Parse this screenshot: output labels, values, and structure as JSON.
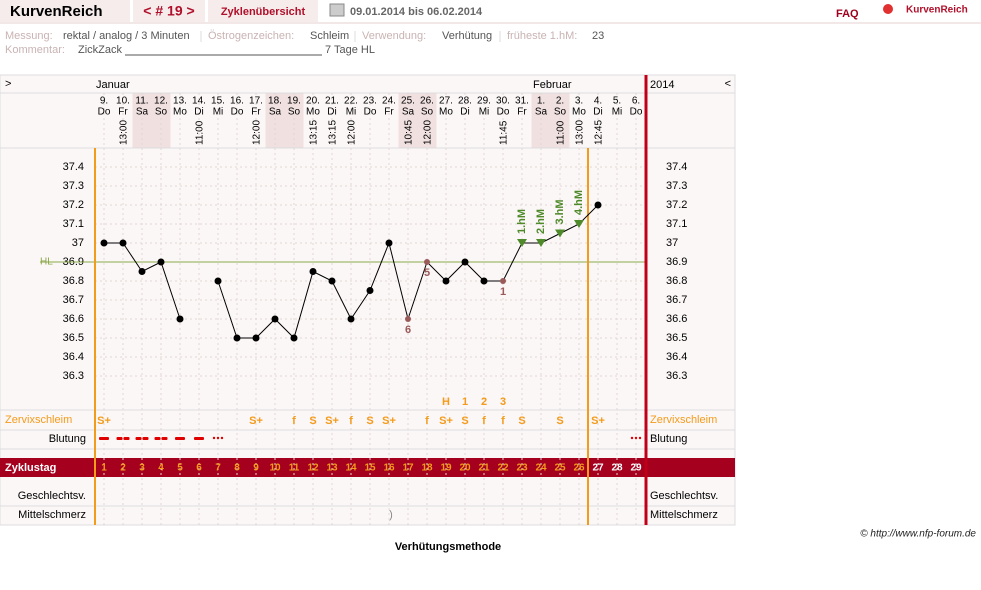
{
  "header": {
    "logo": "KurvenReich",
    "cycle_nav": "< # 19 >",
    "overview": "Zyklenübersicht",
    "date_range": "09.01.2014 bis 06.02.2014",
    "faq": "FAQ",
    "brand": "KurvenReich"
  },
  "info": {
    "items": [
      {
        "label": "Messung:",
        "value": "rektal / analog / 3 Minuten"
      },
      {
        "label": "Östrogenzeichen:",
        "value": "Schleim"
      },
      {
        "label": "Verwendung:",
        "value": "Verhütung"
      },
      {
        "label": "früheste 1.hM:",
        "value": "23"
      }
    ],
    "comment_label": "Kommentar:",
    "comment_start": "ZickZack",
    "comment_end": "7 Tage HL"
  },
  "chart_data": {
    "type": "line",
    "year": "2014",
    "nav_left": ">",
    "nav_right": "<",
    "month_labels": [
      "Januar",
      null,
      null,
      null,
      null,
      null,
      null,
      null,
      null,
      null,
      null,
      null,
      null,
      null,
      null,
      null,
      null,
      null,
      null,
      null,
      null,
      null,
      null,
      "Februar",
      null,
      null,
      null,
      null,
      null
    ],
    "categories": [
      "9.",
      "10.",
      "11.",
      "12.",
      "13.",
      "14.",
      "15.",
      "16.",
      "17.",
      "18.",
      "19.",
      "20.",
      "21.",
      "22.",
      "23.",
      "24.",
      "25.",
      "26.",
      "27.",
      "28.",
      "29.",
      "30.",
      "31.",
      "1.",
      "2.",
      "3.",
      "4.",
      "5.",
      "6."
    ],
    "weekdays": [
      "Do",
      "Fr",
      "Sa",
      "So",
      "Mo",
      "Di",
      "Mi",
      "Do",
      "Fr",
      "Sa",
      "So",
      "Mo",
      "Di",
      "Mi",
      "Do",
      "Fr",
      "Sa",
      "So",
      "Mo",
      "Di",
      "Mi",
      "Do",
      "Fr",
      "Sa",
      "So",
      "Mo",
      "Di",
      "Mi",
      "Do"
    ],
    "times": [
      null,
      "13:00",
      null,
      null,
      null,
      "11:00",
      null,
      null,
      "12:00",
      null,
      null,
      "13:15",
      "13:15",
      "12:00",
      null,
      null,
      "10:45",
      "12:00",
      null,
      null,
      null,
      "11:45",
      null,
      null,
      "11:00",
      "13:00",
      "12:45",
      null,
      null
    ],
    "series": [
      {
        "color": "#000000",
        "values": [
          37.0,
          37.0,
          36.85,
          36.9,
          36.6,
          null,
          36.8,
          36.5,
          36.5,
          36.6,
          36.5,
          36.85,
          36.8,
          36.6,
          36.75,
          37.0,
          36.6,
          36.9,
          36.8,
          36.9,
          36.8,
          36.8,
          37.0,
          37.0,
          37.05,
          37.1,
          37.2,
          null,
          null
        ]
      }
    ],
    "point_labels": [
      null,
      null,
      null,
      null,
      null,
      null,
      null,
      null,
      null,
      null,
      null,
      null,
      null,
      null,
      null,
      null,
      "6",
      "5",
      null,
      null,
      null,
      "1",
      null,
      null,
      null,
      null,
      null,
      null,
      null
    ],
    "excluded_color": "#9a5a5a",
    "hm_labels": [
      null,
      null,
      null,
      null,
      null,
      null,
      null,
      null,
      null,
      null,
      null,
      null,
      null,
      null,
      null,
      null,
      null,
      null,
      null,
      null,
      null,
      null,
      "1.hM",
      "2.hM",
      "3.hM",
      "4.hM",
      null,
      null,
      null
    ],
    "hm_color": "#4f8a2a",
    "ylim": [
      36.2,
      37.5
    ],
    "yticks": [
      36.3,
      36.4,
      36.5,
      36.6,
      36.7,
      36.8,
      36.9,
      37,
      37.1,
      37.2,
      37.3,
      37.4
    ],
    "grid": true,
    "coverline": {
      "label": "HL",
      "value": 36.9,
      "color": "#8aa84a"
    },
    "rows": {
      "zervix": {
        "label": "Zervixschleim",
        "peak": [
          null,
          null,
          null,
          null,
          null,
          null,
          null,
          null,
          null,
          null,
          null,
          null,
          null,
          null,
          null,
          null,
          null,
          null,
          "H",
          "1",
          "2",
          "3",
          null,
          null,
          null,
          null,
          null,
          null,
          null
        ],
        "values": [
          "S+",
          null,
          null,
          null,
          null,
          null,
          null,
          null,
          "S+",
          null,
          "f",
          "S",
          "S+",
          "f",
          "S",
          "S+",
          null,
          "f",
          "S+",
          "S",
          "f",
          "f",
          "S",
          null,
          "S",
          null,
          "S+",
          null,
          null
        ]
      },
      "bleeding": {
        "label": "Blutung",
        "values": [
          1,
          2,
          2,
          2,
          1,
          1,
          0.5,
          null,
          null,
          null,
          null,
          null,
          null,
          null,
          null,
          null,
          null,
          null,
          null,
          null,
          null,
          null,
          null,
          null,
          null,
          null,
          null,
          null,
          0.5
        ]
      },
      "cycle_day": {
        "label": "Zyklustag",
        "values": [
          1,
          2,
          3,
          4,
          5,
          6,
          7,
          8,
          9,
          10,
          11,
          12,
          13,
          14,
          15,
          16,
          17,
          18,
          19,
          20,
          21,
          22,
          23,
          24,
          25,
          26,
          27,
          28,
          29
        ]
      },
      "intercourse": {
        "label": "Geschlechtsv."
      },
      "mittelschmerz": {
        "label": "Mittelschmerz",
        "values": [
          null,
          null,
          null,
          null,
          null,
          null,
          null,
          null,
          null,
          null,
          null,
          null,
          null,
          null,
          null,
          ")",
          null,
          null,
          null,
          null,
          null,
          null,
          null,
          null,
          null,
          null,
          null,
          null,
          null
        ]
      }
    }
  },
  "footer": {
    "method": "Verhütungsmethode",
    "copyright": "© http://www.nfp-forum.de"
  }
}
